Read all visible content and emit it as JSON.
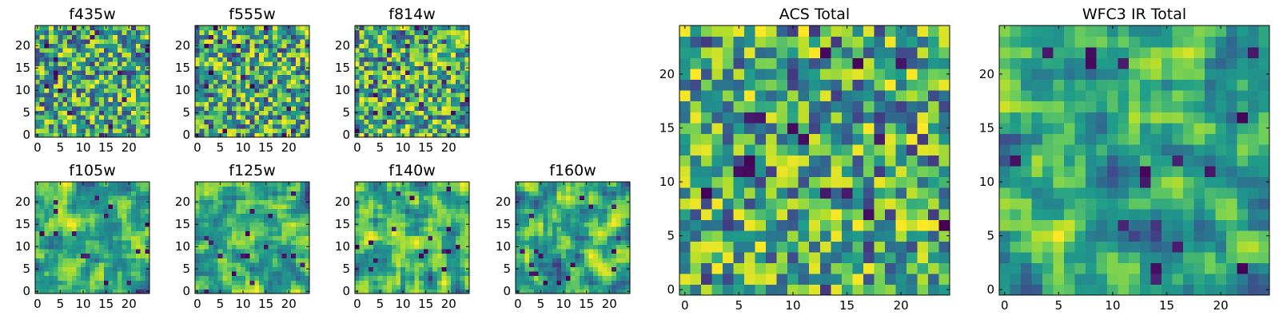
{
  "chart_data": [
    {
      "type": "heatmap",
      "title": "f435w",
      "grid_size": 25,
      "seed": 11,
      "smoothness": 0,
      "xticks": [
        0,
        5,
        10,
        15,
        20
      ],
      "yticks": [
        0,
        5,
        10,
        15,
        20
      ],
      "xlim": [
        -0.5,
        24.5
      ],
      "ylim": [
        -0.5,
        24.5
      ],
      "colormap": "viridis"
    },
    {
      "type": "heatmap",
      "title": "f555w",
      "grid_size": 25,
      "seed": 23,
      "smoothness": 0,
      "xticks": [
        0,
        5,
        10,
        15,
        20
      ],
      "yticks": [
        0,
        5,
        10,
        15,
        20
      ],
      "xlim": [
        -0.5,
        24.5
      ],
      "ylim": [
        -0.5,
        24.5
      ],
      "colormap": "viridis"
    },
    {
      "type": "heatmap",
      "title": "f814w",
      "grid_size": 25,
      "seed": 37,
      "smoothness": 0,
      "xticks": [
        0,
        5,
        10,
        15,
        20
      ],
      "yticks": [
        0,
        5,
        10,
        15,
        20
      ],
      "xlim": [
        -0.5,
        24.5
      ],
      "ylim": [
        -0.5,
        24.5
      ],
      "colormap": "viridis"
    },
    {
      "type": "heatmap",
      "title": "f105w",
      "grid_size": 25,
      "seed": 41,
      "smoothness": 1,
      "xticks": [
        0,
        5,
        10,
        15,
        20
      ],
      "yticks": [
        0,
        5,
        10,
        15,
        20
      ],
      "xlim": [
        -0.5,
        24.5
      ],
      "ylim": [
        -0.5,
        24.5
      ],
      "colormap": "viridis"
    },
    {
      "type": "heatmap",
      "title": "f125w",
      "grid_size": 25,
      "seed": 53,
      "smoothness": 1,
      "xticks": [
        0,
        5,
        10,
        15,
        20
      ],
      "yticks": [
        0,
        5,
        10,
        15,
        20
      ],
      "xlim": [
        -0.5,
        24.5
      ],
      "ylim": [
        -0.5,
        24.5
      ],
      "colormap": "viridis"
    },
    {
      "type": "heatmap",
      "title": "f140w",
      "grid_size": 25,
      "seed": 67,
      "smoothness": 1,
      "xticks": [
        0,
        5,
        10,
        15,
        20
      ],
      "yticks": [
        0,
        5,
        10,
        15,
        20
      ],
      "xlim": [
        -0.5,
        24.5
      ],
      "ylim": [
        -0.5,
        24.5
      ],
      "colormap": "viridis"
    },
    {
      "type": "heatmap",
      "title": "f160w",
      "grid_size": 25,
      "seed": 79,
      "smoothness": 1,
      "xticks": [
        0,
        5,
        10,
        15,
        20
      ],
      "yticks": [
        0,
        5,
        10,
        15,
        20
      ],
      "xlim": [
        -0.5,
        24.5
      ],
      "ylim": [
        -0.5,
        24.5
      ],
      "colormap": "viridis"
    },
    {
      "type": "heatmap",
      "title": "ACS Total",
      "grid_size": 25,
      "seed": 97,
      "smoothness": 0,
      "xticks": [
        0,
        5,
        10,
        15,
        20
      ],
      "yticks": [
        0,
        5,
        10,
        15,
        20
      ],
      "xlim": [
        -0.5,
        24.5
      ],
      "ylim": [
        -0.5,
        24.5
      ],
      "colormap": "viridis"
    },
    {
      "type": "heatmap",
      "title": "WFC3 IR Total",
      "grid_size": 25,
      "seed": 131,
      "smoothness": 1,
      "xticks": [
        0,
        5,
        10,
        15,
        20
      ],
      "yticks": [
        0,
        5,
        10,
        15,
        20
      ],
      "xlim": [
        -0.5,
        24.5
      ],
      "ylim": [
        -0.5,
        24.5
      ],
      "colormap": "viridis"
    }
  ]
}
